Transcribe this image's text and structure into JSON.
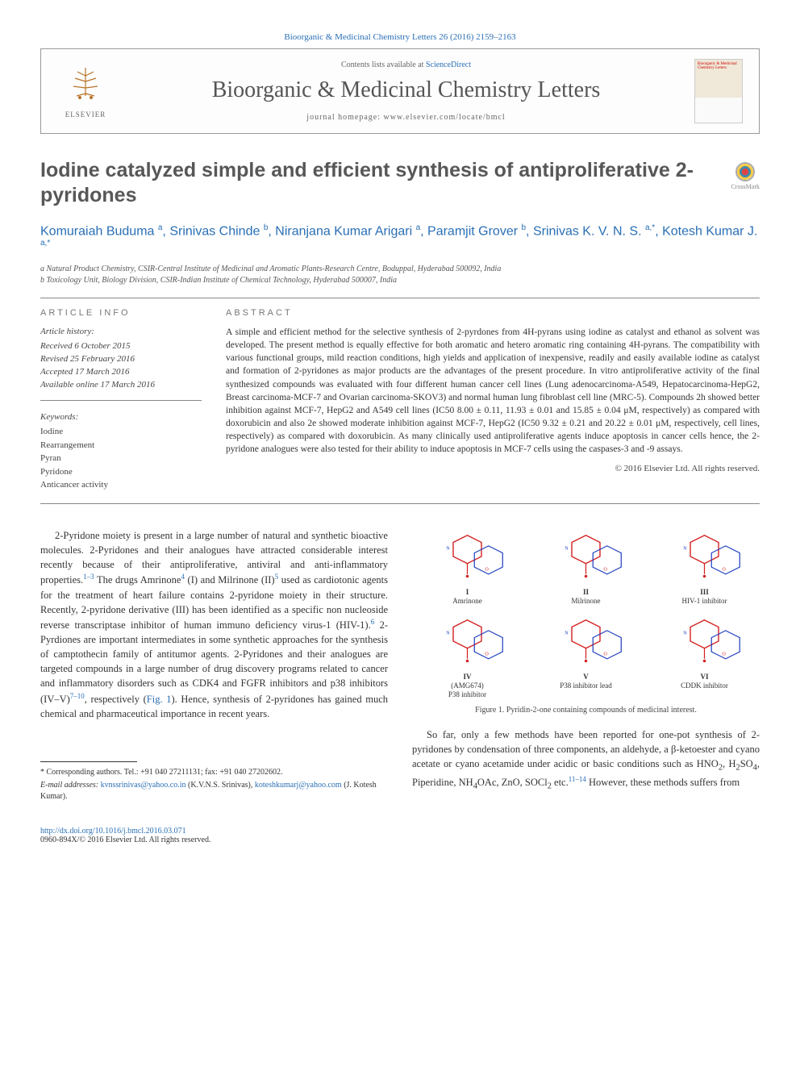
{
  "citation": "Bioorganic & Medicinal Chemistry Letters 26 (2016) 2159–2163",
  "header": {
    "contents_prefix": "Contents lists available at ",
    "contents_link": "ScienceDirect",
    "journal_name": "Bioorganic & Medicinal Chemistry Letters",
    "homepage": "journal homepage: www.elsevier.com/locate/bmcl",
    "elsevier": "ELSEVIER",
    "cover_text": "Bioorganic & Medicinal Chemistry Letters"
  },
  "crossmark": "CrossMark",
  "title": "Iodine catalyzed simple and efficient synthesis of antiproliferative 2-pyridones",
  "authors_html": "Komuraiah Buduma <sup>a</sup>, Srinivas Chinde <sup>b</sup>, Niranjana Kumar Arigari <sup>a</sup>, Paramjit Grover <sup>b</sup>, Srinivas K. V. N. S. <sup>a,*</sup>, Kotesh Kumar J. <sup>a,*</sup>",
  "affiliations": [
    "a Natural Product Chemistry, CSIR-Central Institute of Medicinal and Aromatic Plants-Research Centre, Boduppal, Hyderabad 500092, India",
    "b Toxicology Unit, Biology Division, CSIR-Indian Institute of Chemical Technology, Hyderabad 500007, India"
  ],
  "article_info_heading": "ARTICLE INFO",
  "abstract_heading": "ABSTRACT",
  "history": {
    "label": "Article history:",
    "received": "Received 6 October 2015",
    "revised": "Revised 25 February 2016",
    "accepted": "Accepted 17 March 2016",
    "online": "Available online 17 March 2016"
  },
  "keywords": {
    "label": "Keywords:",
    "items": [
      "Iodine",
      "Rearrangement",
      "Pyran",
      "Pyridone",
      "Anticancer activity"
    ]
  },
  "abstract": "A simple and efficient method for the selective synthesis of 2-pyrdones from 4H-pyrans using iodine as catalyst and ethanol as solvent was developed. The present method is equally effective for both aromatic and hetero aromatic ring containing 4H-pyrans. The compatibility with various functional groups, mild reaction conditions, high yields and application of inexpensive, readily and easily available iodine as catalyst and formation of 2-pyridones as major products are the advantages of the present procedure. In vitro antiproliferative activity of the final synthesized compounds was evaluated with four different human cancer cell lines (Lung adenocarcinoma-A549, Hepatocarcinoma-HepG2, Breast carcinoma-MCF-7 and Ovarian carcinoma-SKOV3) and normal human lung fibroblast cell line (MRC-5). Compounds 2h showed better inhibition against MCF-7, HepG2 and A549 cell lines (IC50 8.00 ± 0.11, 11.93 ± 0.01 and 15.85 ± 0.04 μM, respectively) as compared with doxorubicin and also 2e showed moderate inhibition against MCF-7, HepG2 (IC50 9.32 ± 0.21 and 20.22 ± 0.01 μM, respectively, cell lines, respectively) as compared with doxorubicin. As many clinically used antiproliferative agents induce apoptosis in cancer cells hence, the 2-pyridone analogues were also tested for their ability to induce apoptosis in MCF-7 cells using the caspases-3 and -9 assays.",
  "copyright": "© 2016 Elsevier Ltd. All rights reserved.",
  "body": {
    "para1": "2-Pyridone moiety is present in a large number of natural and synthetic bioactive molecules. 2-Pyridones and their analogues have attracted considerable interest recently because of their antiproliferative, antiviral and anti-inflammatory properties.1–3 The drugs Amrinone4 (I) and Milrinone (II)5 used as cardiotonic agents for the treatment of heart failure contains 2-pyridone moiety in their structure. Recently, 2-pyridone derivative (III) has been identified as a specific non nucleoside reverse transcriptase inhibitor of human immuno deficiency virus-1 (HIV-1).6 2-Pyrdiones are important intermediates in some synthetic approaches for the synthesis of camptothecin family of antitumor agents. 2-Pyridones and their analogues are targeted compounds in a large number of drug discovery programs related to cancer and inflammatory disorders such as CDK4 and FGFR inhibitors and p38 inhibitors (IV–V)7–10, respectively (Fig. 1). Hence, synthesis of 2-pyridones has gained much chemical and pharmaceutical importance in recent years.",
    "para2": "So far, only a few methods have been reported for one-pot synthesis of 2-pyridones by condensation of three components, an aldehyde, a β-ketoester and cyano acetate or cyano acetamide under acidic or basic conditions such as HNO2, H2SO4, Piperidine, NH4OAc, ZnO, SOCl2 etc.11–14 However, these methods suffers from"
  },
  "figure1": {
    "molecules": [
      {
        "id": "I",
        "name": "Amrinone",
        "colors": {
          "core": "#d42020",
          "sub": "#2040c0"
        }
      },
      {
        "id": "II",
        "name": "Milrinone",
        "colors": {
          "core": "#d42020",
          "sub": "#2040c0"
        }
      },
      {
        "id": "III",
        "name": "HIV-1 inhibitor",
        "colors": {
          "core": "#d42020",
          "sub": "#2040c0"
        }
      },
      {
        "id": "IV",
        "name": "(AMG674)\nP38 inhibitor",
        "colors": {
          "core": "#d42020",
          "sub": "#2040c0"
        }
      },
      {
        "id": "V",
        "name": "P38 inhibitor lead",
        "colors": {
          "core": "#d42020",
          "sub": "#2040c0"
        }
      },
      {
        "id": "VI",
        "name": "CDDK inhibitor",
        "colors": {
          "core": "#d42020",
          "sub": "#2040c0"
        }
      }
    ],
    "caption": "Figure 1. Pyridin-2-one containing compounds of medicinal interest."
  },
  "footnotes": {
    "corresponding": "* Corresponding authors. Tel.: +91 040 27211131; fax: +91 040 27202602.",
    "emails_label": "E-mail addresses:",
    "email1": "kvnssrinivas@yahoo.co.in",
    "email1_name": "(K.V.N.S. Srinivas)",
    "email2": "koteshkumarj@yahoo.com",
    "email2_name": "(J. Kotesh Kumar)."
  },
  "doi": {
    "url": "http://dx.doi.org/10.1016/j.bmcl.2016.03.071",
    "issn_line": "0960-894X/© 2016 Elsevier Ltd. All rights reserved."
  },
  "colors": {
    "link": "#2a6fb5",
    "heading": "#575757",
    "rule": "#888888",
    "body": "#333333"
  }
}
